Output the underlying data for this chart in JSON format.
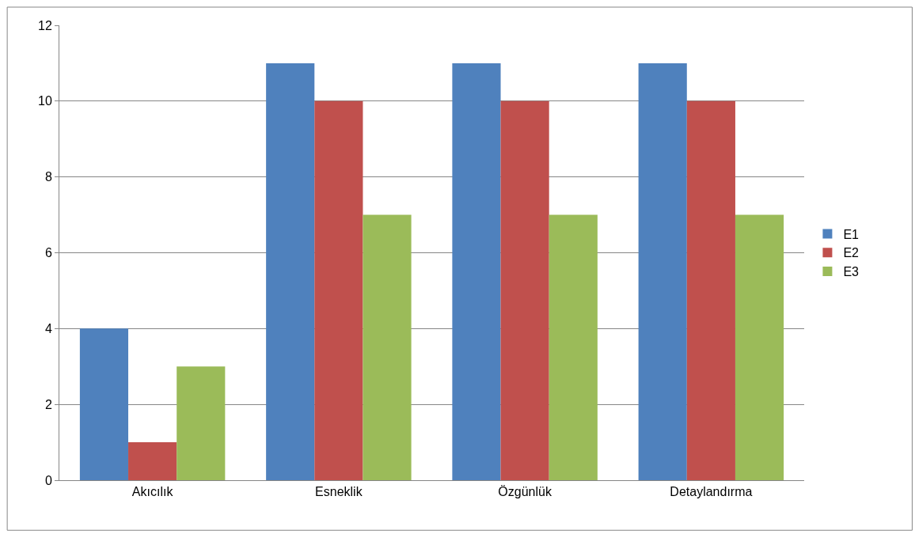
{
  "chart_data": {
    "type": "bar",
    "categories": [
      "Akıcılık",
      "Esneklik",
      "Özgünlük",
      "Detaylandırma"
    ],
    "series": [
      {
        "name": "E1",
        "color": "#4f81bd",
        "values": [
          4,
          11,
          11,
          11
        ]
      },
      {
        "name": "E2",
        "color": "#c0504d",
        "values": [
          1,
          10,
          10,
          10
        ]
      },
      {
        "name": "E3",
        "color": "#9bbb59",
        "values": [
          3,
          7,
          7,
          7
        ]
      }
    ],
    "ylim": [
      0,
      12
    ],
    "yticks": [
      0,
      2,
      4,
      6,
      8,
      10,
      12
    ],
    "grid": "y",
    "legend": "right"
  }
}
